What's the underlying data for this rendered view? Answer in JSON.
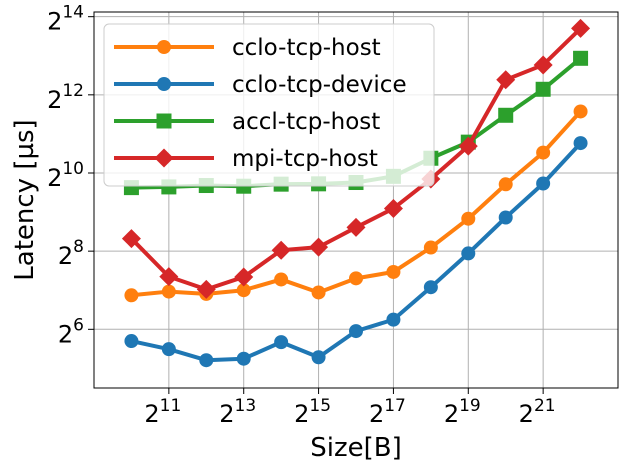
{
  "chart_data": {
    "type": "line",
    "xlabel": "Size[B]",
    "ylabel": "Latency [µs]",
    "x_scale": "log2",
    "y_scale": "log2",
    "x_tick_base": "2",
    "x_tick_exponents": [
      "11",
      "13",
      "15",
      "17",
      "19",
      "21"
    ],
    "y_tick_base": "2",
    "y_tick_exponents": [
      "6",
      "8",
      "10",
      "12",
      "14"
    ],
    "xlim": [
      512,
      8388608
    ],
    "ylim": [
      22.6,
      17800
    ],
    "grid": true,
    "legend_position": "top-left",
    "x": [
      1024,
      2048,
      4096,
      8192,
      16384,
      32768,
      65536,
      131072,
      262144,
      524288,
      1048576,
      2097152,
      4194304
    ],
    "series": [
      {
        "name": "cclo-tcp-host",
        "color": "#ff7f0e",
        "marker": "circle",
        "values": [
          117,
          125,
          120,
          128,
          155,
          123,
          158,
          177,
          273,
          455,
          838,
          1470,
          3050
        ]
      },
      {
        "name": "cclo-tcp-device",
        "color": "#1f77b4",
        "marker": "circle",
        "values": [
          52,
          45,
          37,
          38,
          51,
          39,
          62,
          76,
          135,
          246,
          465,
          850,
          1740
        ]
      },
      {
        "name": "accl-tcp-host",
        "color": "#2ca02c",
        "marker": "square",
        "values": [
          790,
          800,
          820,
          810,
          840,
          845,
          865,
          965,
          1330,
          1770,
          2850,
          4520,
          7830
        ]
      },
      {
        "name": "mpi-tcp-host",
        "color": "#d62728",
        "marker": "diamond",
        "values": [
          320,
          163,
          130,
          162,
          260,
          275,
          390,
          546,
          920,
          1650,
          5350,
          6960,
          13300
        ]
      }
    ]
  }
}
